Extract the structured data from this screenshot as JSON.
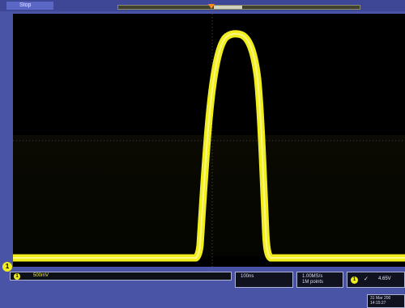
{
  "status": {
    "run_state": "Stop"
  },
  "channel1": {
    "number": "1",
    "scale": "500mV",
    "color": "#f2ee1e"
  },
  "horizontal": {
    "timebase": "100ns"
  },
  "acquisition": {
    "sample_rate": "1.00MS/s",
    "record_length": "1M points"
  },
  "trigger": {
    "source": "1",
    "slope": "✓",
    "level": "4.65V"
  },
  "datetime": {
    "date": "31 Mar 200",
    "time": "14:15:27"
  },
  "icons": {
    "trigger_position": "trigger-position-marker-icon",
    "ground": "ch1-ground-marker-icon"
  }
}
